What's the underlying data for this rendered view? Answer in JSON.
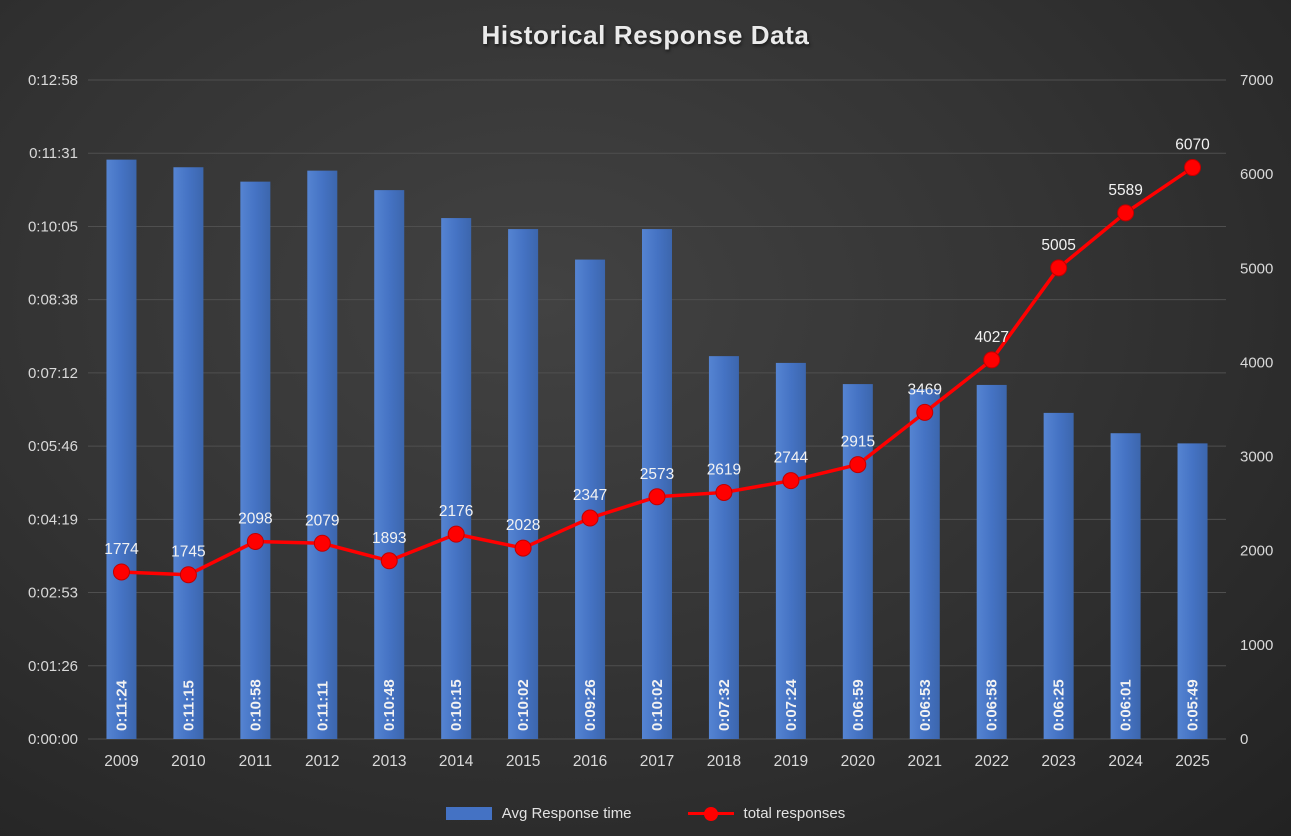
{
  "title": "Historical Response Data",
  "legend": {
    "bar_series_label": "Avg Response time",
    "line_series_label": "total responses"
  },
  "colors": {
    "bar": "#4472c4",
    "line": "#ff0000",
    "gridline": "#4f4f4f",
    "axis_text": "#d9d9d9",
    "label_text": "#f2f2f2"
  },
  "chart_data": {
    "type": "combo",
    "title": "Historical Response Data",
    "categories": [
      "2009",
      "2010",
      "2011",
      "2012",
      "2013",
      "2014",
      "2015",
      "2016",
      "2017",
      "2018",
      "2019",
      "2020",
      "2021",
      "2022",
      "2023",
      "2024",
      "2025"
    ],
    "series": [
      {
        "name": "Avg Response time",
        "type": "bar",
        "axis": "left",
        "values": [
          "0:11:24",
          "0:11:15",
          "0:10:58",
          "0:11:11",
          "0:10:48",
          "0:10:15",
          "0:10:02",
          "0:09:26",
          "0:10:02",
          "0:07:32",
          "0:07:24",
          "0:06:59",
          "0:06:53",
          "0:06:58",
          "0:06:25",
          "0:06:01",
          "0:05:49"
        ],
        "values_seconds": [
          684,
          675,
          658,
          671,
          648,
          615,
          602,
          566,
          602,
          452,
          444,
          419,
          413,
          418,
          385,
          361,
          349
        ]
      },
      {
        "name": "total responses",
        "type": "line",
        "axis": "right",
        "values": [
          1774,
          1745,
          2098,
          2079,
          1893,
          2176,
          2028,
          2347,
          2573,
          2619,
          2744,
          2915,
          3469,
          4027,
          5005,
          5589,
          6070
        ]
      }
    ],
    "left_axis": {
      "ticks": [
        "0:00:00",
        "0:01:26",
        "0:02:53",
        "0:04:19",
        "0:05:46",
        "0:07:12",
        "0:08:38",
        "0:10:05",
        "0:11:31",
        "0:12:58"
      ],
      "min_seconds": 0,
      "max_seconds": 778
    },
    "right_axis": {
      "ticks": [
        0,
        1000,
        2000,
        3000,
        4000,
        5000,
        6000,
        7000
      ],
      "min": 0,
      "max": 7000
    },
    "grid": true,
    "legend_position": "bottom"
  }
}
